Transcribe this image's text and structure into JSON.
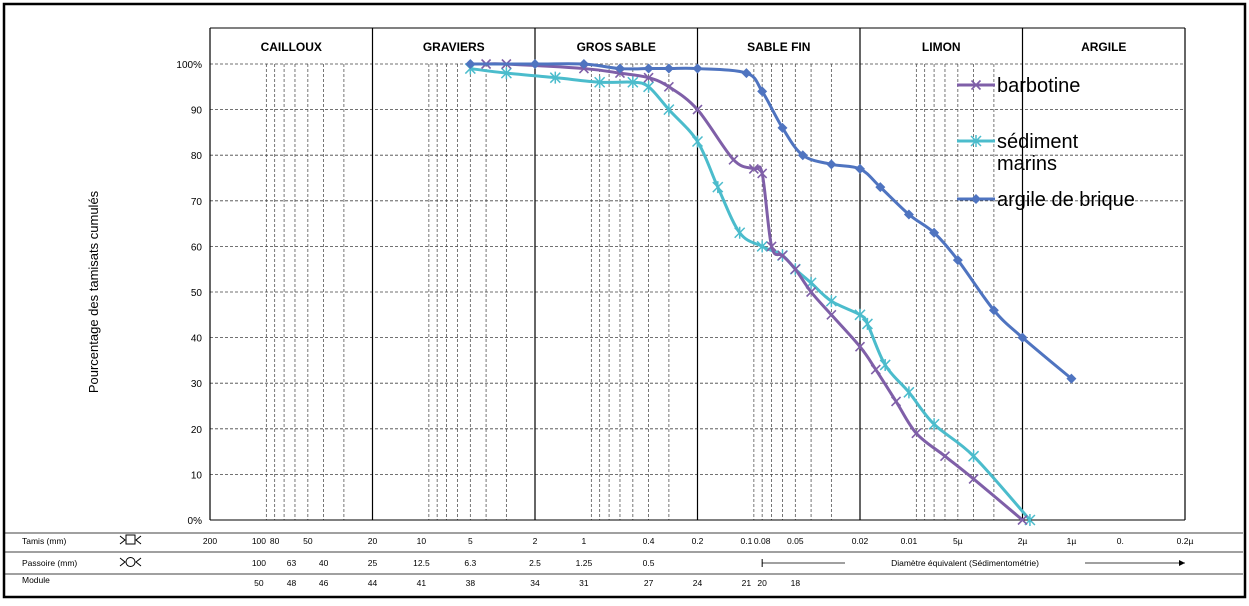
{
  "chart_data": {
    "type": "line",
    "title": "",
    "ylabel": "Pourcentage des tamisats cumulés",
    "xscale": "log",
    "x_direction": "decreasing",
    "xlim_mm": [
      200,
      0.0002
    ],
    "ylim": [
      0,
      100
    ],
    "yticks": [
      "0%",
      "10",
      "20",
      "30",
      "40",
      "50",
      "60",
      "70",
      "80",
      "90",
      "100%"
    ],
    "grid": true,
    "legend_position": "top-right",
    "class_bands": [
      {
        "label": "CAILLOUX",
        "from_mm": 200,
        "to_mm": 20
      },
      {
        "label": "GRAVIERS",
        "from_mm": 20,
        "to_mm": 2
      },
      {
        "label": "GROS SABLE",
        "from_mm": 2,
        "to_mm": 0.2
      },
      {
        "label": "SABLE FIN",
        "from_mm": 0.2,
        "to_mm": 0.02
      },
      {
        "label": "LIMON",
        "from_mm": 0.02,
        "to_mm": 0.002
      },
      {
        "label": "ARGILE",
        "from_mm": 0.002,
        "to_mm": 0.0002
      }
    ],
    "series": [
      {
        "name": "barbotine",
        "color": "#7f5fa8",
        "marker": "x",
        "x_mm": [
          4,
          3,
          1,
          0.6,
          0.4,
          0.3,
          0.2,
          0.12,
          0.09,
          0.08,
          0.07,
          0.06,
          0.05,
          0.04,
          0.03,
          0.02,
          0.016,
          0.012,
          0.009,
          0.006,
          0.004,
          0.002
        ],
        "y": [
          100,
          100,
          99,
          98,
          97,
          95,
          90,
          79,
          77,
          76,
          60,
          58,
          55,
          50,
          45,
          38,
          33,
          26,
          19,
          14,
          9,
          0
        ]
      },
      {
        "name": "sédiment marins",
        "color": "#4bbccc",
        "marker": "star",
        "x_mm": [
          5,
          3,
          1.5,
          0.8,
          0.5,
          0.4,
          0.3,
          0.2,
          0.15,
          0.11,
          0.08,
          0.06,
          0.05,
          0.04,
          0.03,
          0.02,
          0.018,
          0.014,
          0.01,
          0.007,
          0.004,
          0.0018
        ],
        "y": [
          99,
          98,
          97,
          96,
          96,
          95,
          90,
          83,
          73,
          63,
          60,
          58,
          55,
          52,
          48,
          45,
          43,
          34,
          28,
          21,
          14,
          0
        ]
      },
      {
        "name": "argile de brique",
        "color": "#4f74c0",
        "marker": "diamond",
        "x_mm": [
          5,
          2,
          1,
          0.6,
          0.4,
          0.3,
          0.2,
          0.1,
          0.08,
          0.06,
          0.045,
          0.03,
          0.02,
          0.015,
          0.01,
          0.007,
          0.005,
          0.003,
          0.002,
          0.001
        ],
        "y": [
          100,
          100,
          100,
          99,
          99,
          99,
          99,
          98,
          94,
          86,
          80,
          78,
          77,
          73,
          67,
          63,
          57,
          46,
          40,
          31
        ]
      }
    ]
  },
  "table": {
    "rows": [
      {
        "label": "Tamis (mm)",
        "symbol": "tamis-symbol-icon"
      },
      {
        "label": "Passoire (mm)",
        "symbol": "passoire-symbol-icon"
      },
      {
        "label": "Module",
        "symbol": ""
      }
    ],
    "tamis_values": [
      {
        "label": "200",
        "mm": 200
      },
      {
        "label": "100",
        "mm": 100
      },
      {
        "label": "80",
        "mm": 80
      },
      {
        "label": "50",
        "mm": 50
      },
      {
        "label": "20",
        "mm": 20
      },
      {
        "label": "10",
        "mm": 10
      },
      {
        "label": "5",
        "mm": 5
      },
      {
        "label": "2",
        "mm": 2
      },
      {
        "label": "1",
        "mm": 1
      },
      {
        "label": "0.4",
        "mm": 0.4
      },
      {
        "label": "0.2",
        "mm": 0.2
      },
      {
        "label": "0.1",
        "mm": 0.1
      },
      {
        "label": "0.08",
        "mm": 0.08
      },
      {
        "label": "0.05",
        "mm": 0.05
      },
      {
        "label": "0.02",
        "mm": 0.02
      },
      {
        "label": "0.01",
        "mm": 0.01
      },
      {
        "label": "5µ",
        "mm": 0.005
      },
      {
        "label": "2µ",
        "mm": 0.002
      },
      {
        "label": "1µ",
        "mm": 0.001
      },
      {
        "label": "0.",
        "mm": 0.0005
      },
      {
        "label": "0.2µ",
        "mm": 0.0002
      }
    ],
    "passoire_values": [
      {
        "label": "100",
        "mm": 100
      },
      {
        "label": "63",
        "mm": 63
      },
      {
        "label": "40",
        "mm": 40
      },
      {
        "label": "25",
        "mm": 20
      },
      {
        "label": "12.5",
        "mm": 10
      },
      {
        "label": "6.3",
        "mm": 5
      },
      {
        "label": "2.5",
        "mm": 2
      },
      {
        "label": "1.25",
        "mm": 1
      },
      {
        "label": "0.5",
        "mm": 0.4
      }
    ],
    "sedimentometry_label": "Diamètre équivalent (Sédimentométrie)",
    "module_values": [
      {
        "label": "50",
        "mm": 100
      },
      {
        "label": "48",
        "mm": 63
      },
      {
        "label": "46",
        "mm": 40
      },
      {
        "label": "44",
        "mm": 20
      },
      {
        "label": "41",
        "mm": 10
      },
      {
        "label": "38",
        "mm": 5
      },
      {
        "label": "34",
        "mm": 2
      },
      {
        "label": "31",
        "mm": 1
      },
      {
        "label": "27",
        "mm": 0.4
      },
      {
        "label": "24",
        "mm": 0.2
      },
      {
        "label": "21",
        "mm": 0.1
      },
      {
        "label": "20",
        "mm": 0.08
      },
      {
        "label": "18",
        "mm": 0.05
      }
    ]
  }
}
